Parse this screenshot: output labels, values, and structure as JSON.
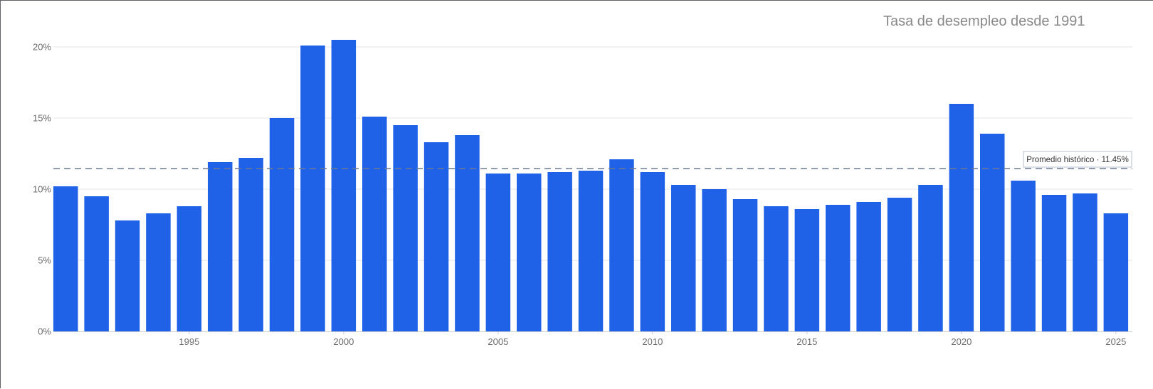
{
  "chart_data": {
    "type": "bar",
    "title": "Tasa de desempleo desde 1991",
    "xlabel": "",
    "ylabel": "",
    "x": [
      1991,
      1992,
      1993,
      1994,
      1995,
      1996,
      1997,
      1998,
      1999,
      2000,
      2001,
      2002,
      2003,
      2004,
      2005,
      2006,
      2007,
      2008,
      2009,
      2010,
      2011,
      2012,
      2013,
      2014,
      2015,
      2016,
      2017,
      2018,
      2019,
      2020,
      2021,
      2022,
      2023,
      2024,
      2025
    ],
    "values": [
      10.2,
      9.5,
      7.8,
      8.3,
      8.8,
      11.9,
      12.2,
      15.0,
      20.1,
      20.5,
      15.1,
      14.5,
      13.3,
      13.8,
      11.1,
      11.1,
      11.2,
      11.3,
      12.1,
      11.2,
      10.3,
      10.0,
      9.3,
      8.8,
      8.6,
      8.9,
      9.1,
      9.4,
      10.3,
      16.0,
      13.9,
      10.6,
      9.6,
      9.7,
      8.3
    ],
    "x_tick_labels": [
      "1995",
      "2000",
      "2005",
      "2010",
      "2015",
      "2020",
      "2025"
    ],
    "y_tick_labels": [
      "0%",
      "5%",
      "10%",
      "15%",
      "20%"
    ],
    "ylim": [
      0,
      21
    ],
    "grid": "horizontal",
    "bar_color": "#1f62e8",
    "reference_line": {
      "value": 11.45,
      "label": "Promedio histórico · 11.45%",
      "color": "#6b7a8f"
    }
  }
}
